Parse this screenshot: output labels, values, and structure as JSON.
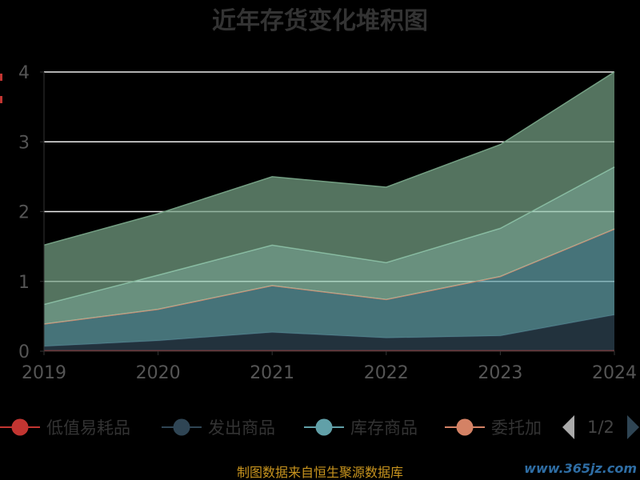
{
  "chart_data": {
    "type": "area",
    "title": "近年存货变化堆积图",
    "stacked": true,
    "categories": [
      "2019",
      "2020",
      "2021",
      "2022",
      "2023",
      "2024"
    ],
    "series": [
      {
        "name": "低值易耗品",
        "values": [
          0.01,
          0.01,
          0.01,
          0.01,
          0.01,
          0.01
        ],
        "color": "#c23531"
      },
      {
        "name": "发出商品",
        "values": [
          0.06,
          0.14,
          0.26,
          0.18,
          0.21,
          0.51
        ],
        "color": "#2f4554"
      },
      {
        "name": "库存商品",
        "values": [
          0.32,
          0.45,
          0.67,
          0.55,
          0.85,
          1.23
        ],
        "color": "#61a0a8"
      },
      {
        "name": "委托加",
        "values": [
          0.0,
          0.0,
          0.0,
          0.0,
          0.0,
          0.0
        ],
        "color": "#d48265"
      },
      {
        "name": "",
        "values": [
          0.28,
          0.49,
          0.58,
          0.53,
          0.69,
          0.89
        ],
        "color": "#91c7ae"
      },
      {
        "name": "",
        "values": [
          0.85,
          0.88,
          0.98,
          1.08,
          1.2,
          1.36
        ],
        "color": "#749f83"
      }
    ],
    "ylim": [
      0,
      4
    ],
    "yticks": [
      0,
      1,
      2,
      3,
      4
    ],
    "grid": true,
    "legend_position": "bottom"
  },
  "legend": {
    "page_info": "1/2"
  },
  "footer": {
    "source": "制图数据来自恒生聚源数据库",
    "watermark": "www.365jz.com"
  }
}
